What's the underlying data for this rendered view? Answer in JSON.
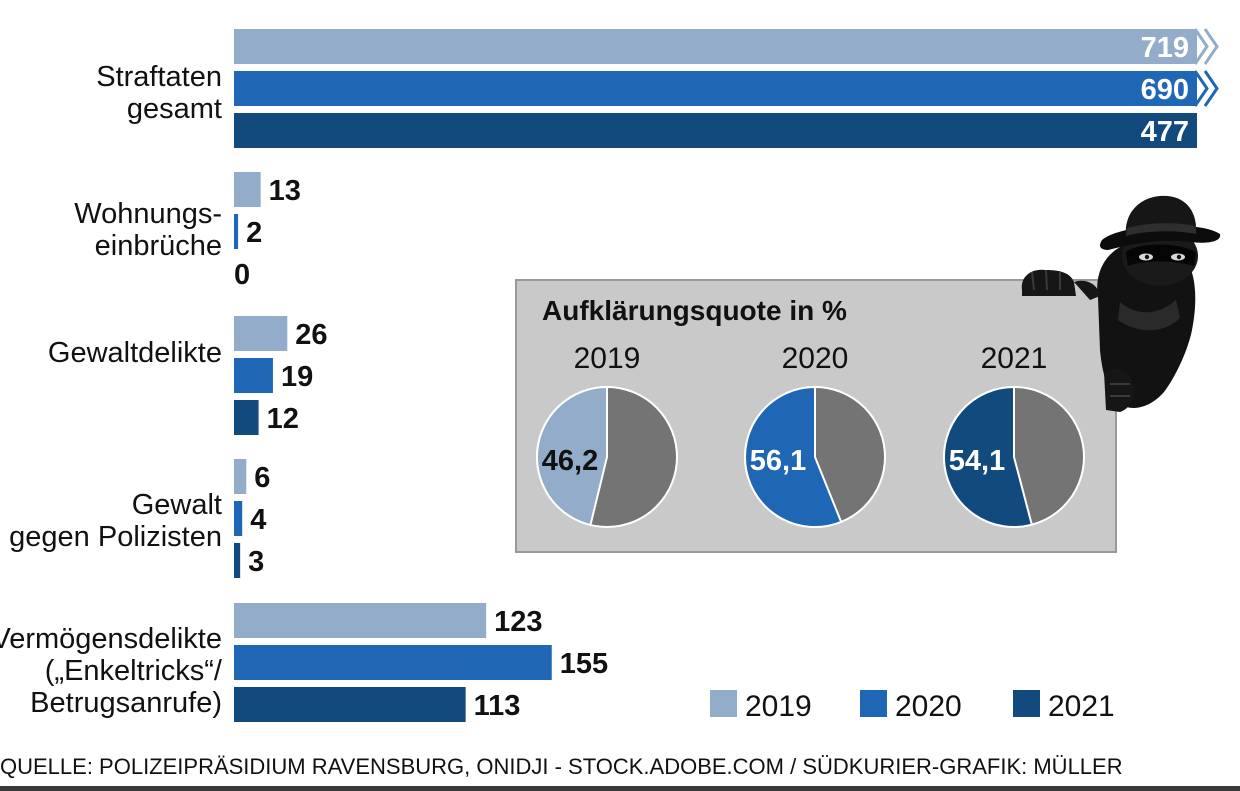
{
  "chart_data": [
    {
      "type": "bar",
      "orientation": "horizontal",
      "categories": [
        [
          "Straftaten",
          "gesamt"
        ],
        [
          "Wohnungs-",
          "einbrüche"
        ],
        [
          "Gewaltdelikte"
        ],
        [
          "Gewalt",
          "gegen Polizisten"
        ],
        [
          "Vermögensdelikte",
          "(„Enkeltricks“/",
          "Betrugsanrufe)"
        ]
      ],
      "series": [
        {
          "name": "2019",
          "color": "#93acca",
          "values": [
            719,
            13,
            26,
            6,
            123
          ],
          "labels": [
            "719",
            "13",
            "26",
            "6",
            "123"
          ]
        },
        {
          "name": "2020",
          "color": "#1f67b4",
          "values": [
            690,
            2,
            19,
            4,
            155
          ],
          "labels": [
            "690",
            "2",
            "19",
            "4",
            "155"
          ]
        },
        {
          "name": "2021",
          "color": "#134a7d",
          "values": [
            477,
            0,
            12,
            3,
            113
          ],
          "labels": [
            "477",
            "0",
            "12",
            "3",
            "113"
          ]
        }
      ],
      "axis_break_on_first_category": true,
      "legend_position": "bottom-right",
      "grid": false
    },
    {
      "type": "pie",
      "title": "Aufklärungsquote in %",
      "pies": [
        {
          "year": "2019",
          "value": 46.2,
          "label": "46,2",
          "color": "#93acca",
          "label_color": "#111111"
        },
        {
          "year": "2020",
          "value": 56.1,
          "label": "56,1",
          "color": "#1f67b4",
          "label_color": "#ffffff"
        },
        {
          "year": "2021",
          "value": 54.1,
          "label": "54,1",
          "color": "#134a7d",
          "label_color": "#ffffff"
        }
      ],
      "remainder_color": "#747474"
    }
  ],
  "legend": [
    {
      "label": "2019",
      "color": "#93acca"
    },
    {
      "label": "2020",
      "color": "#1f67b4"
    },
    {
      "label": "2021",
      "color": "#134a7d"
    }
  ],
  "source": "QUELLE: POLIZEIPRÄSIDIUM RAVENSBURG, ONIDJI - STOCK.ADOBE.COM / SÜDKURIER-GRAFIK: MÜLLER",
  "illustration": "burglar-in-hat-peeking-icon"
}
